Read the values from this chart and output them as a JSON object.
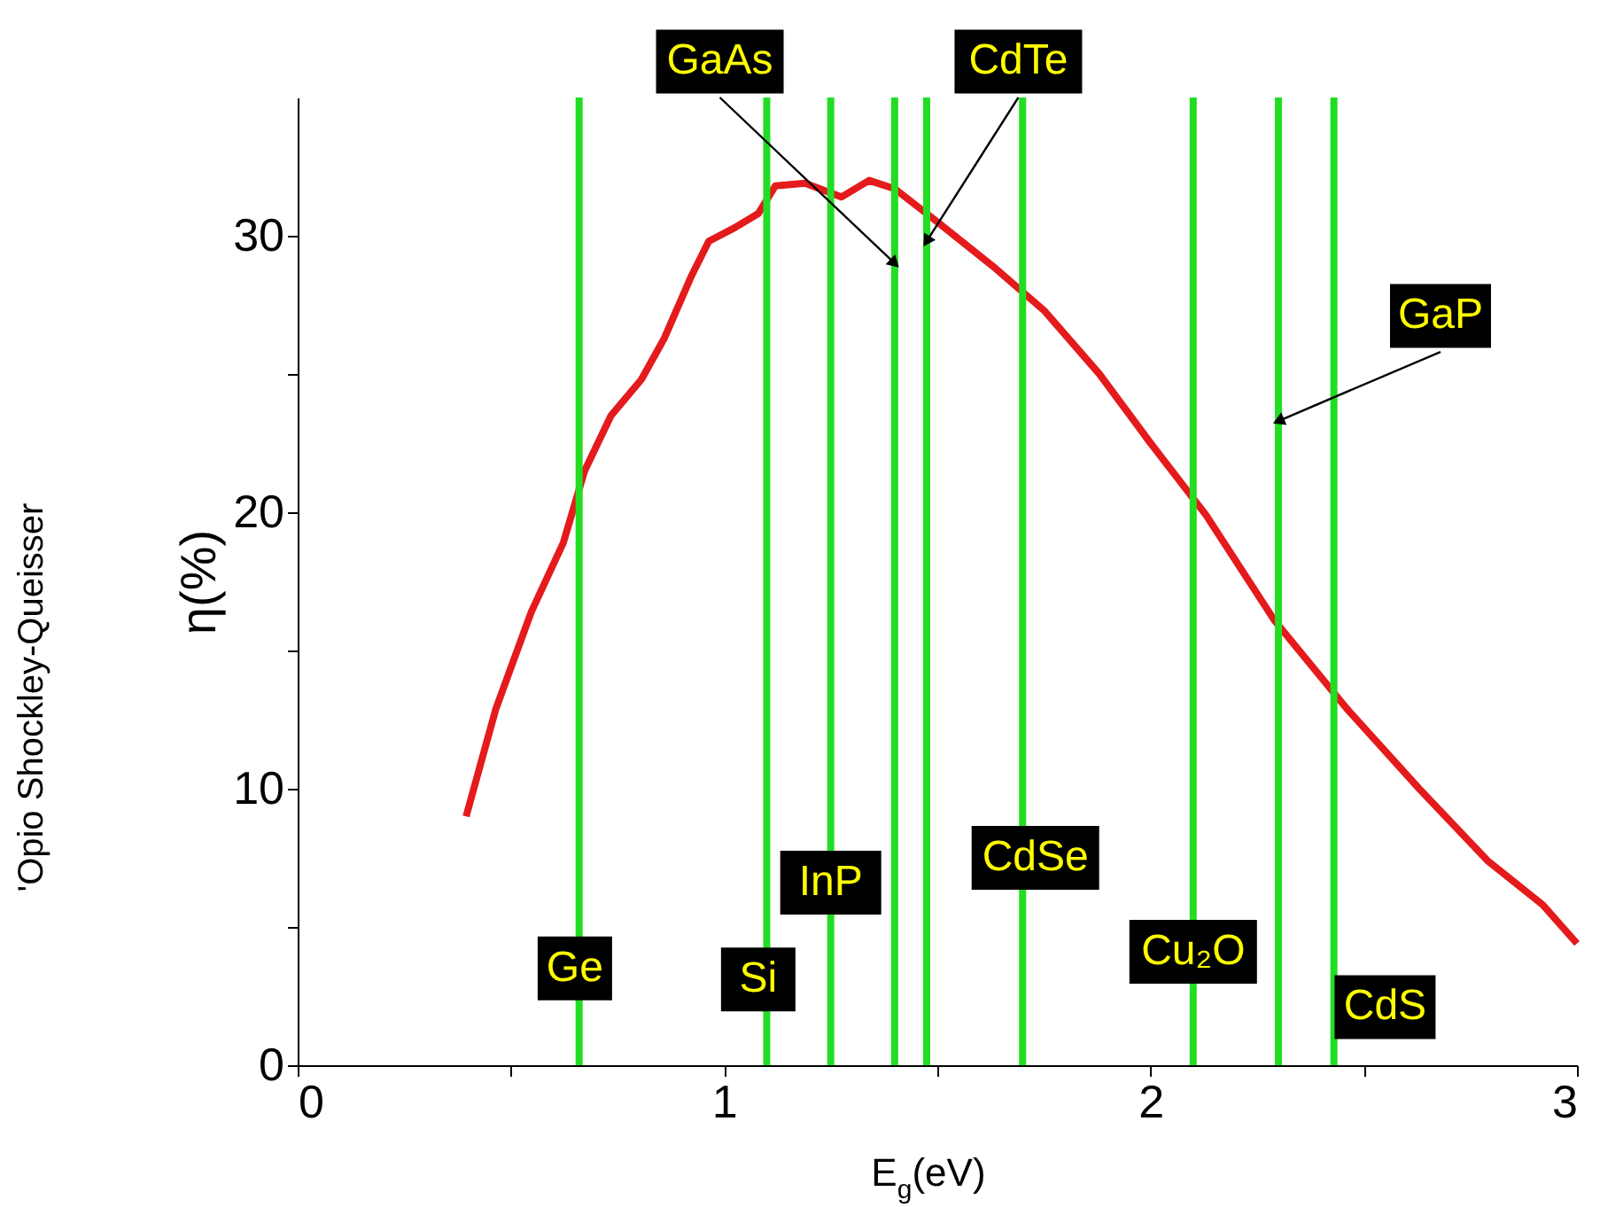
{
  "chart_data": {
    "type": "line",
    "xlabel": "E$_{g}$(eV)",
    "ylabel": "η(%)",
    "annotations": [
      "ʹOpio Shockley-Queisser"
    ],
    "x": [
      0.395,
      0.465,
      0.548,
      0.623,
      0.673,
      0.735,
      0.806,
      0.86,
      0.922,
      0.964,
      1.026,
      1.08,
      1.12,
      1.19,
      1.275,
      1.34,
      1.4,
      1.5,
      1.63,
      1.75,
      1.88,
      2.0,
      2.13,
      2.29,
      2.46,
      2.63,
      2.79,
      2.92,
      3.0
    ],
    "series": [
      {
        "color": "#e41a1c",
        "values": [
          9.0,
          12.9,
          16.4,
          18.9,
          21.5,
          23.5,
          24.8,
          26.3,
          28.5,
          29.8,
          30.3,
          30.8,
          31.8,
          31.9,
          31.4,
          32.0,
          31.7,
          30.5,
          28.9,
          27.3,
          25.0,
          22.5,
          19.9,
          16.1,
          12.9,
          10.0,
          7.4,
          5.8,
          4.4
        ]
      }
    ],
    "ref_lines": [
      {
        "axis": "x",
        "value": 0.66,
        "label": "Ge",
        "color": "#22dd22"
      },
      {
        "axis": "x",
        "value": 1.1,
        "label": "Si",
        "color": "#22dd22"
      },
      {
        "axis": "x",
        "value": 1.25,
        "label": "InP",
        "color": "#22dd22"
      },
      {
        "axis": "x",
        "value": 1.4,
        "label": "GaAs",
        "color": "#22dd22"
      },
      {
        "axis": "x",
        "value": 1.475,
        "label": "CdTe",
        "color": "#22dd22"
      },
      {
        "axis": "x",
        "value": 1.7,
        "label": "CdSe",
        "color": "#22dd22"
      },
      {
        "axis": "x",
        "value": 2.1,
        "label": "Cu₂O",
        "color": "#22dd22"
      },
      {
        "axis": "x",
        "value": 2.3,
        "label": "GaP",
        "color": "#22dd22"
      },
      {
        "axis": "x",
        "value": 2.43,
        "label": "CdS",
        "color": "#22dd22"
      }
    ],
    "xlim": [
      0,
      3
    ],
    "ylim": [
      0,
      35
    ],
    "xticks": [
      0,
      {
        "value": 0.5,
        "label": null
      },
      1,
      {
        "value": 1.5,
        "label": null
      },
      2,
      {
        "value": 2.5,
        "label": null
      },
      3
    ],
    "yticks": [
      0,
      {
        "value": 5,
        "label": null
      },
      10,
      {
        "value": 15,
        "label": null
      },
      20,
      {
        "value": 25,
        "label": null
      },
      30
    ],
    "grid": false,
    "marker": "none",
    "line_style": "solid"
  }
}
